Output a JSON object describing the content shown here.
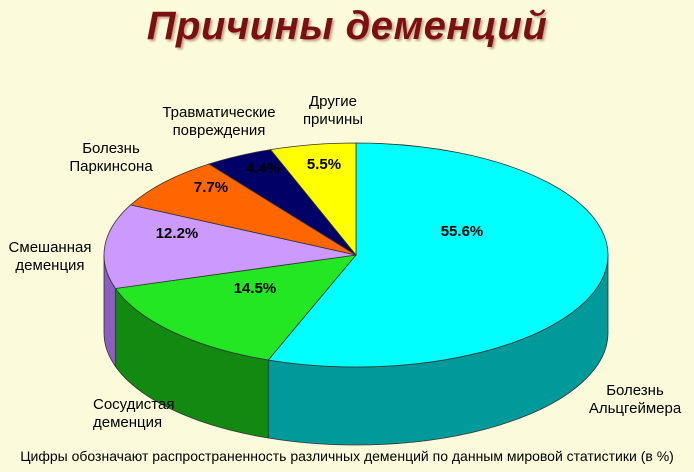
{
  "title": "Причины деменций",
  "footnote": "Цифры обозначают распространенность различных деменций по данным мировой статистики (в %)",
  "chart_data": {
    "type": "pie",
    "title": "Причины деменций",
    "unit": "%",
    "slices": [
      {
        "label": [
          "Болезнь",
          "Альцгеймера"
        ],
        "value": 55.6,
        "value_label": "55.6%",
        "color": "#00ffff",
        "side_color": "#009a9a"
      },
      {
        "label": [
          "Сосудистая",
          "деменция"
        ],
        "value": 14.5,
        "value_label": "14.5%",
        "color": "#22e722",
        "side_color": "#128a12"
      },
      {
        "label": [
          "Смешанная",
          "деменция"
        ],
        "value": 12.2,
        "value_label": "12.2%",
        "color": "#cc99ff",
        "side_color": "#8a5fc0"
      },
      {
        "label": [
          "Болезнь",
          "Паркинсона"
        ],
        "value": 7.7,
        "value_label": "7.7%",
        "color": "#ff6600",
        "side_color": "#b04400"
      },
      {
        "label": [
          "Травматические",
          "повреждения"
        ],
        "value": 4.4,
        "value_label": "4.4%",
        "color": "#000066",
        "side_color": "#00003a"
      },
      {
        "label": [
          "Другие",
          "причины"
        ],
        "value": 5.5,
        "value_label": "5.5%",
        "color": "#ffff00",
        "side_color": "#a8a800"
      }
    ]
  }
}
